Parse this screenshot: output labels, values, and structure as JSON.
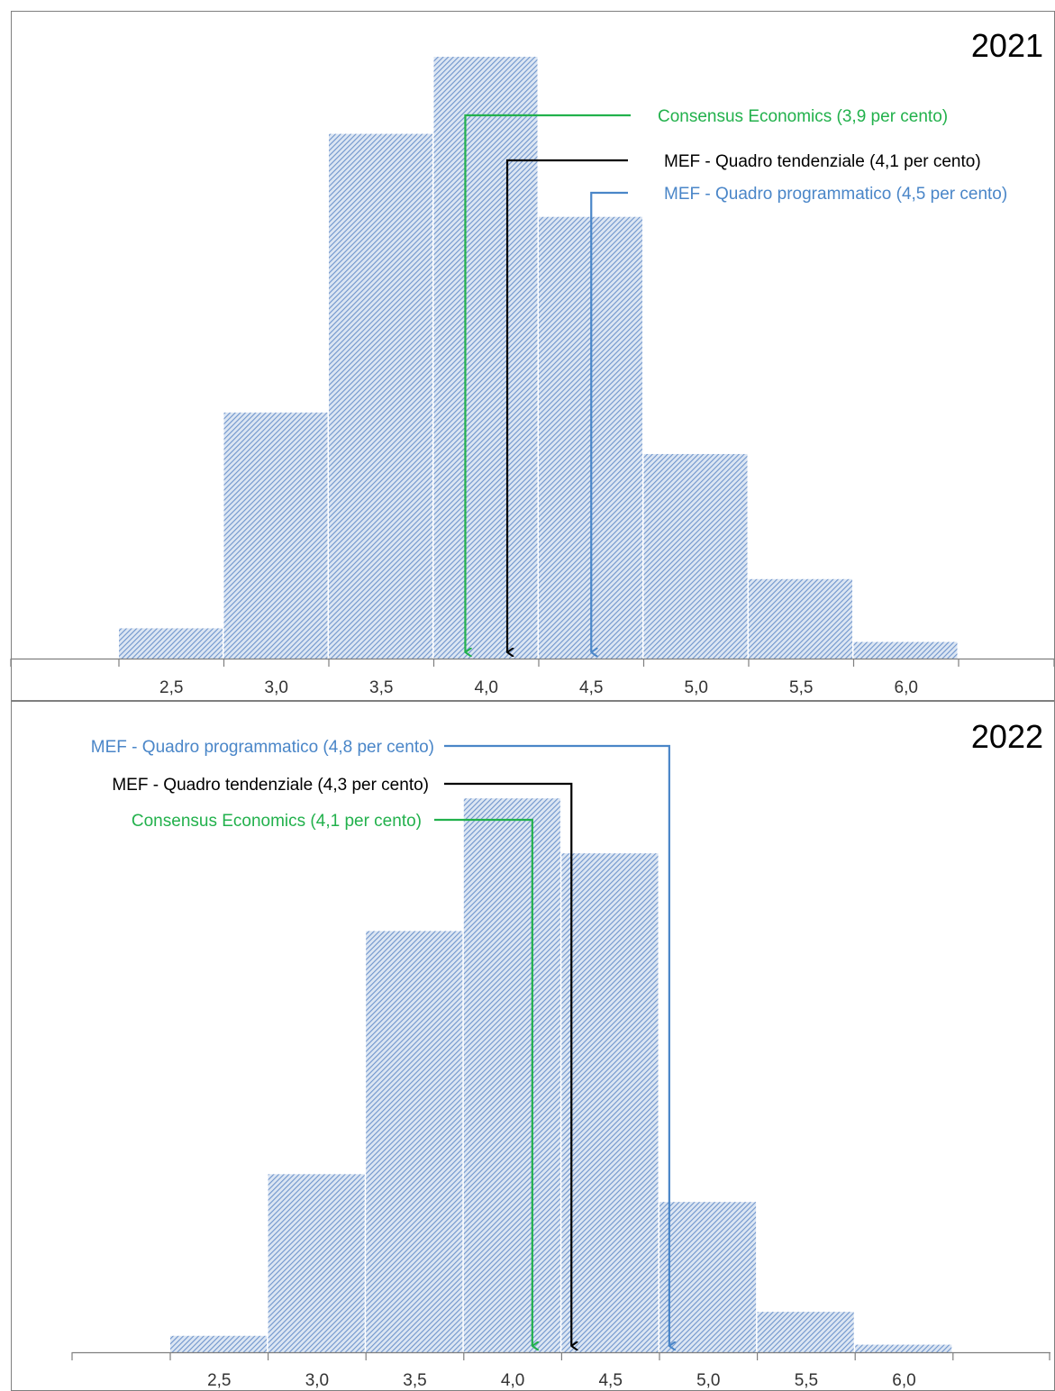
{
  "chart_data": [
    {
      "type": "bar",
      "title": "2021",
      "categories": [
        "2,5",
        "3,0",
        "3,5",
        "4,0",
        "4,5",
        "5,0",
        "5,5",
        "6,0"
      ],
      "values": [
        5.1,
        41.5,
        88.5,
        101.5,
        74.5,
        34.5,
        13.4,
        2.8
      ],
      "ylim": [
        0,
        105
      ],
      "bar_color": "#7fa1d0",
      "annotations": [
        {
          "label": "Consensus Economics (3,9 per cento)",
          "x": 3.9,
          "color": "#22b14c"
        },
        {
          "label": "MEF - Quadro tendenziale (4,1 per cento)",
          "x": 4.1,
          "color": "#000000"
        },
        {
          "label": "MEF - Quadro programmatico (4,5 per cento)",
          "x": 4.5,
          "color": "#4a86c8"
        }
      ]
    },
    {
      "type": "bar",
      "title": "2022",
      "categories": [
        "2,5",
        "3,0",
        "3,5",
        "4,0",
        "4,5",
        "5,0",
        "5,5",
        "6,0"
      ],
      "values": [
        2.6,
        28.2,
        66.7,
        87.7,
        79.0,
        23.8,
        6.4,
        1.2
      ],
      "ylim": [
        0,
        100
      ],
      "bar_color": "#7fa1d0",
      "annotations": [
        {
          "label": "MEF - Quadro programmatico  (4,8 per cento)",
          "x": 4.8,
          "color": "#4a86c8"
        },
        {
          "label": "MEF - Quadro tendenziale (4,3 per cento)",
          "x": 4.3,
          "color": "#000000"
        },
        {
          "label": "Consensus Economics (4,1 per cento)",
          "x": 4.1,
          "color": "#22b14c"
        }
      ]
    }
  ]
}
